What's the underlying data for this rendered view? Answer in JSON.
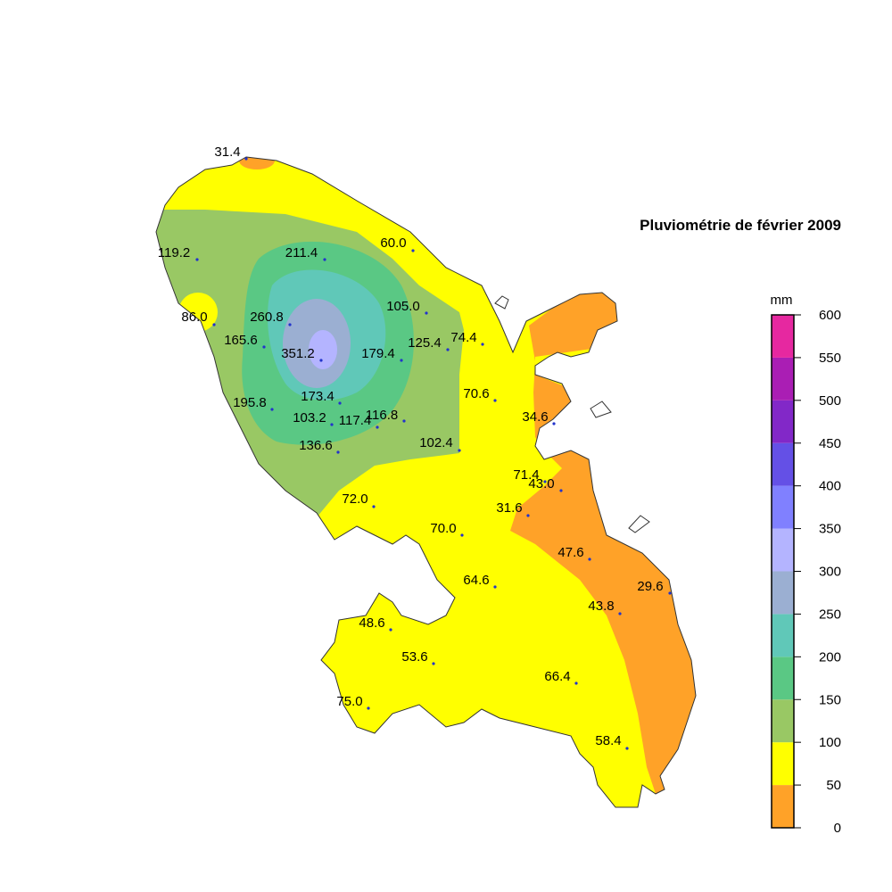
{
  "title": "Pluviométrie de février 2009",
  "legend": {
    "unit": "mm",
    "ticks": [
      0,
      50,
      100,
      150,
      200,
      250,
      300,
      350,
      400,
      450,
      500,
      550,
      600
    ],
    "colors": [
      "#ffa228",
      "#ffff00",
      "#99c864",
      "#5ac884",
      "#60c8b8",
      "#9bafd2",
      "#b4b4ff",
      "#8080ff",
      "#6450e6",
      "#8228c8",
      "#aa1eb4",
      "#e628a0"
    ]
  },
  "stations": [
    "31.4",
    "119.2",
    "211.4",
    "60.0",
    "86.0",
    "260.8",
    "105.0",
    "165.6",
    "351.2",
    "179.4",
    "125.4",
    "74.4",
    "70.6",
    "34.6",
    "173.4",
    "195.8",
    "103.2",
    "117.4",
    "116.8",
    "136.6",
    "102.4",
    "71.4",
    "43.0",
    "72.0",
    "31.6",
    "70.0",
    "47.6",
    "64.6",
    "29.6",
    "43.8",
    "48.6",
    "53.6",
    "66.4",
    "75.0",
    "58.4"
  ]
}
